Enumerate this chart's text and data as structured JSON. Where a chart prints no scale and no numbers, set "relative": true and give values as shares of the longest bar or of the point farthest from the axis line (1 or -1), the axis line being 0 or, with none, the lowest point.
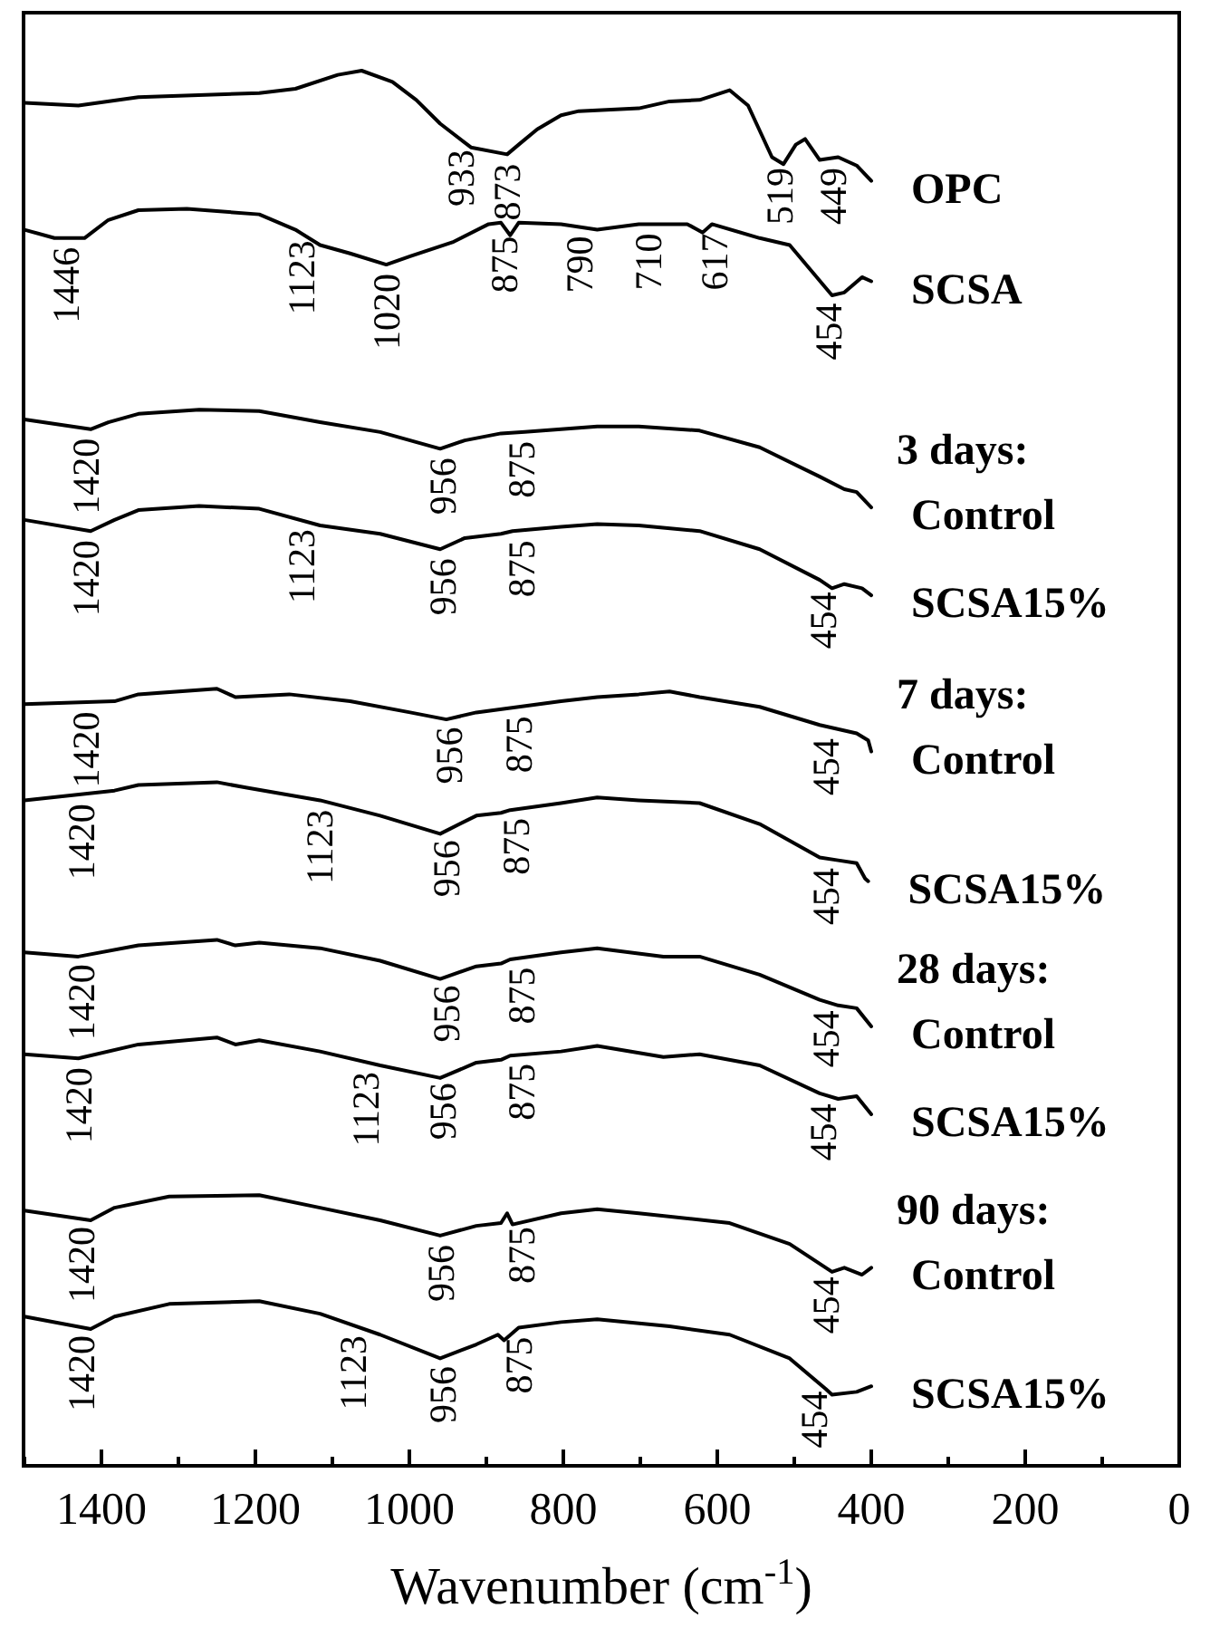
{
  "chart_data": {
    "type": "line",
    "relative": true,
    "xlabel": "Wavenumber (cm$^{-1}$)",
    "xlim": [
      1500,
      0
    ],
    "xticks": [
      {
        "value": 1500,
        "label": null
      },
      1400,
      {
        "value": 1300,
        "label": null
      },
      1200,
      {
        "value": 1100,
        "label": null
      },
      1000,
      {
        "value": 900,
        "label": null
      },
      800,
      {
        "value": 700,
        "label": null
      },
      600,
      {
        "value": 500,
        "label": null
      },
      400,
      {
        "value": 300,
        "label": null
      },
      200,
      {
        "value": 100,
        "label": null
      },
      0
    ],
    "legend": false,
    "grid": false,
    "marker": "none",
    "line_style": "solid",
    "series": [
      {
        "name": "OPC",
        "color": "#000000",
        "x": [
          1500,
          1430,
          1352,
          1195,
          1148,
          1093,
          1062,
          1022,
          991,
          960,
          920,
          873,
          858,
          834,
          803,
          780,
          702,
          662,
          623,
          584,
          560,
          529,
          514,
          498,
          486,
          467,
          443,
          419,
          400
        ],
        "values": [
          0.977,
          0.975,
          0.981,
          0.984,
          0.987,
          0.997,
          1,
          0.992,
          0.979,
          0.962,
          0.945,
          0.94,
          0.947,
          0.958,
          0.968,
          0.971,
          0.973,
          0.978,
          0.979,
          0.986,
          0.975,
          0.938,
          0.933,
          0.947,
          0.951,
          0.936,
          0.938,
          0.932,
          0.921
        ]
      },
      {
        "name": "SCSA",
        "color": "#000000",
        "x": [
          1500,
          1461,
          1422,
          1391,
          1352,
          1289,
          1195,
          1148,
          1116,
          1077,
          1030,
          999,
          944,
          897,
          881,
          869,
          858,
          803,
          756,
          702,
          639,
          619,
          607,
          545,
          506,
          451,
          435,
          412,
          400
        ],
        "values": [
          0.886,
          0.88,
          0.88,
          0.893,
          0.9,
          0.901,
          0.897,
          0.886,
          0.875,
          0.869,
          0.861,
          0.867,
          0.877,
          0.89,
          0.891,
          0.882,
          0.891,
          0.89,
          0.886,
          0.89,
          0.89,
          0.884,
          0.89,
          0.88,
          0.875,
          0.839,
          0.841,
          0.852,
          0.849
        ]
      },
      {
        "name": "Control",
        "color": "#000000",
        "x": [
          1500,
          1414,
          1391,
          1352,
          1273,
          1195,
          1116,
          1038,
          960,
          928,
          881,
          850,
          803,
          756,
          702,
          623,
          545,
          467,
          435,
          419,
          400
        ],
        "values": [
          0.75,
          0.743,
          0.748,
          0.754,
          0.757,
          0.756,
          0.748,
          0.741,
          0.729,
          0.735,
          0.74,
          0.741,
          0.743,
          0.745,
          0.745,
          0.742,
          0.73,
          0.709,
          0.7,
          0.698,
          0.687
        ]
      },
      {
        "name": "SCSA15%",
        "color": "#000000",
        "x": [
          1500,
          1414,
          1383,
          1352,
          1273,
          1195,
          1116,
          1038,
          960,
          928,
          881,
          866,
          803,
          756,
          702,
          623,
          545,
          467,
          451,
          435,
          412,
          400
        ],
        "values": [
          0.678,
          0.67,
          0.678,
          0.685,
          0.688,
          0.686,
          0.674,
          0.668,
          0.657,
          0.665,
          0.668,
          0.67,
          0.673,
          0.675,
          0.674,
          0.67,
          0.657,
          0.635,
          0.629,
          0.632,
          0.629,
          0.624
        ]
      },
      {
        "name": "Control",
        "color": "#000000",
        "x": [
          1500,
          1383,
          1352,
          1250,
          1226,
          1156,
          1077,
          999,
          952,
          913,
          858,
          803,
          756,
          702,
          662,
          623,
          545,
          467,
          419,
          404,
          400
        ],
        "values": [
          0.546,
          0.548,
          0.553,
          0.557,
          0.551,
          0.553,
          0.548,
          0.54,
          0.535,
          0.54,
          0.544,
          0.548,
          0.551,
          0.553,
          0.555,
          0.551,
          0.544,
          0.531,
          0.525,
          0.52,
          0.512
        ]
      },
      {
        "name": "SCSA15%",
        "color": "#000000",
        "x": [
          1500,
          1383,
          1352,
          1250,
          1211,
          1116,
          1038,
          960,
          913,
          881,
          869,
          803,
          756,
          702,
          623,
          545,
          467,
          443,
          419,
          408,
          404
        ],
        "values": [
          0.477,
          0.484,
          0.488,
          0.49,
          0.486,
          0.477,
          0.466,
          0.453,
          0.466,
          0.468,
          0.47,
          0.475,
          0.479,
          0.477,
          0.475,
          0.46,
          0.436,
          0.434,
          0.432,
          0.421,
          0.419
        ]
      },
      {
        "name": "Control",
        "color": "#000000",
        "x": [
          1500,
          1430,
          1352,
          1250,
          1226,
          1195,
          1116,
          1038,
          960,
          913,
          881,
          869,
          803,
          756,
          670,
          623,
          545,
          467,
          443,
          419,
          400
        ],
        "values": [
          0.368,
          0.365,
          0.373,
          0.377,
          0.373,
          0.375,
          0.371,
          0.362,
          0.349,
          0.358,
          0.36,
          0.363,
          0.368,
          0.371,
          0.365,
          0.365,
          0.352,
          0.334,
          0.33,
          0.328,
          0.315
        ]
      },
      {
        "name": "SCSA15%",
        "color": "#000000",
        "x": [
          1500,
          1430,
          1352,
          1250,
          1226,
          1195,
          1116,
          1038,
          960,
          913,
          881,
          869,
          803,
          756,
          670,
          623,
          545,
          467,
          443,
          419,
          400
        ],
        "values": [
          0.295,
          0.292,
          0.302,
          0.307,
          0.302,
          0.305,
          0.297,
          0.287,
          0.278,
          0.289,
          0.291,
          0.294,
          0.297,
          0.301,
          0.293,
          0.295,
          0.287,
          0.267,
          0.263,
          0.265,
          0.252
        ]
      },
      {
        "name": "Control",
        "color": "#000000",
        "x": [
          1500,
          1414,
          1383,
          1312,
          1195,
          1116,
          1038,
          960,
          913,
          881,
          873,
          866,
          803,
          756,
          702,
          584,
          506,
          451,
          435,
          412,
          400
        ],
        "values": [
          0.183,
          0.176,
          0.185,
          0.193,
          0.194,
          0.185,
          0.176,
          0.165,
          0.172,
          0.174,
          0.181,
          0.173,
          0.181,
          0.184,
          0.181,
          0.174,
          0.159,
          0.139,
          0.142,
          0.137,
          0.142
        ]
      },
      {
        "name": "SCSA15%",
        "color": "#000000",
        "x": [
          1500,
          1414,
          1383,
          1312,
          1195,
          1116,
          1038,
          960,
          913,
          885,
          877,
          858,
          803,
          756,
          662,
          584,
          506,
          459,
          451,
          419,
          400
        ],
        "values": [
          0.107,
          0.098,
          0.107,
          0.116,
          0.118,
          0.109,
          0.094,
          0.077,
          0.087,
          0.094,
          0.09,
          0.099,
          0.103,
          0.105,
          0.1,
          0.094,
          0.077,
          0.055,
          0.051,
          0.053,
          0.057
        ]
      }
    ],
    "annotations": [
      {
        "text": "933",
        "x": 933,
        "y": 0.95
      },
      {
        "text": "873",
        "x": 873,
        "y": 0.94
      },
      {
        "text": "519",
        "x": 519,
        "y": 0.937
      },
      {
        "text": "449",
        "x": 449,
        "y": 0.937
      },
      {
        "text": "1446",
        "x": 1446,
        "y": 0.88
      },
      {
        "text": "1123",
        "x": 1140,
        "y": 0.885
      },
      {
        "text": "1020",
        "x": 1030,
        "y": 0.861
      },
      {
        "text": "875",
        "x": 877,
        "y": 0.888
      },
      {
        "text": "790",
        "x": 779,
        "y": 0.888
      },
      {
        "text": "710",
        "x": 690,
        "y": 0.89
      },
      {
        "text": "617",
        "x": 604,
        "y": 0.89
      },
      {
        "text": "454",
        "x": 455,
        "y": 0.84
      },
      {
        "text": "3 days:",
        "x": 400,
        "y": 0.687
      },
      {
        "text": "1420",
        "x": 1420,
        "y": 0.743
      },
      {
        "text": "956",
        "x": 956,
        "y": 0.729
      },
      {
        "text": "875",
        "x": 854,
        "y": 0.741
      },
      {
        "text": "1420",
        "x": 1420,
        "y": 0.67
      },
      {
        "text": "1123",
        "x": 1140,
        "y": 0.678
      },
      {
        "text": "956",
        "x": 956,
        "y": 0.657
      },
      {
        "text": "875",
        "x": 854,
        "y": 0.67
      },
      {
        "text": "454",
        "x": 462,
        "y": 0.633
      },
      {
        "text": "7 days:",
        "x": 400,
        "y": 0.512
      },
      {
        "text": "1420",
        "x": 1420,
        "y": 0.547
      },
      {
        "text": "956",
        "x": 948,
        "y": 0.536
      },
      {
        "text": "875",
        "x": 858,
        "y": 0.544
      },
      {
        "text": "454",
        "x": 459,
        "y": 0.528
      },
      {
        "text": "1420",
        "x": 1426,
        "y": 0.481
      },
      {
        "text": "1123",
        "x": 1116,
        "y": 0.477
      },
      {
        "text": "956",
        "x": 952,
        "y": 0.455
      },
      {
        "text": "875",
        "x": 861,
        "y": 0.471
      },
      {
        "text": "454",
        "x": 459,
        "y": 0.435
      },
      {
        "text": "28 days:",
        "x": 400,
        "y": 0.315
      },
      {
        "text": "1420",
        "x": 1426,
        "y": 0.366
      },
      {
        "text": "956",
        "x": 952,
        "y": 0.351
      },
      {
        "text": "875",
        "x": 854,
        "y": 0.364
      },
      {
        "text": "454",
        "x": 459,
        "y": 0.333
      },
      {
        "text": "1420",
        "x": 1430,
        "y": 0.292
      },
      {
        "text": "1123",
        "x": 1057,
        "y": 0.289
      },
      {
        "text": "956",
        "x": 956,
        "y": 0.281
      },
      {
        "text": "875",
        "x": 854,
        "y": 0.295
      },
      {
        "text": "454",
        "x": 462,
        "y": 0.266
      },
      {
        "text": "90 days:",
        "x": 400,
        "y": 0.142
      },
      {
        "text": "1420",
        "x": 1426,
        "y": 0.178
      },
      {
        "text": "956",
        "x": 959,
        "y": 0.165
      },
      {
        "text": "875",
        "x": 854,
        "y": 0.178
      },
      {
        "text": "454",
        "x": 459,
        "y": 0.142
      },
      {
        "text": "1420",
        "x": 1426,
        "y": 0.1
      },
      {
        "text": "1123",
        "x": 1073,
        "y": 0.1
      },
      {
        "text": "956",
        "x": 956,
        "y": 0.078
      },
      {
        "text": "875",
        "x": 858,
        "y": 0.099
      },
      {
        "text": "454",
        "x": 474,
        "y": 0.06
      }
    ]
  }
}
